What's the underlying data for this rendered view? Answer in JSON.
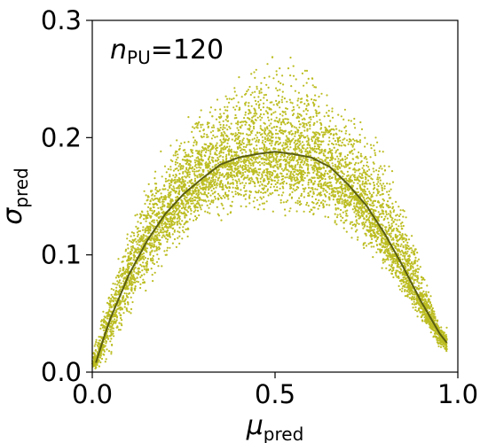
{
  "chart_data": {
    "type": "scatter",
    "annotation": {
      "main": "n",
      "sub": "PU",
      "rest": "=120"
    },
    "xlabel": {
      "main": "μ",
      "sub": "pred"
    },
    "ylabel": {
      "main": "σ",
      "sub": "pred"
    },
    "xlim": [
      0.0,
      1.0
    ],
    "ylim": [
      0.0,
      0.3
    ],
    "xticks": [
      0.0,
      0.5,
      1.0
    ],
    "xtick_labels": [
      "0.0",
      "0.5",
      "1.0"
    ],
    "yticks": [
      0.0,
      0.1,
      0.2,
      0.3
    ],
    "ytick_labels": [
      "0.0",
      "0.1",
      "0.2",
      "0.3"
    ],
    "grid": false,
    "colors": {
      "scatter": "#bcbd22",
      "curve": "#5a5e10",
      "axes": "#000000"
    },
    "scatter_band": {
      "x_extent": [
        0.0,
        0.97
      ],
      "upper_envelope": {
        "x": [
          0.0,
          0.05,
          0.1,
          0.15,
          0.2,
          0.3,
          0.4,
          0.5,
          0.6,
          0.7,
          0.8,
          0.9,
          0.95
        ],
        "y": [
          0.02,
          0.08,
          0.13,
          0.17,
          0.2,
          0.24,
          0.26,
          0.285,
          0.27,
          0.235,
          0.2,
          0.1,
          0.04
        ]
      },
      "lower_envelope": {
        "x": [
          0.0,
          0.05,
          0.1,
          0.2,
          0.3,
          0.4,
          0.5,
          0.6,
          0.7,
          0.8,
          0.9,
          0.95
        ],
        "y": [
          0.0,
          0.005,
          0.04,
          0.09,
          0.12,
          0.13,
          0.13,
          0.12,
          0.11,
          0.08,
          0.04,
          0.015
        ]
      }
    },
    "series": [
      {
        "type": "line",
        "x": [
          0.01,
          0.03,
          0.05,
          0.1,
          0.15,
          0.2,
          0.25,
          0.3,
          0.35,
          0.4,
          0.45,
          0.5,
          0.55,
          0.6,
          0.65,
          0.7,
          0.75,
          0.8,
          0.85,
          0.9,
          0.95,
          0.97
        ],
        "y": [
          0.008,
          0.028,
          0.046,
          0.083,
          0.112,
          0.135,
          0.152,
          0.165,
          0.177,
          0.183,
          0.186,
          0.188,
          0.186,
          0.183,
          0.175,
          0.16,
          0.142,
          0.118,
          0.09,
          0.06,
          0.033,
          0.025
        ]
      }
    ]
  }
}
